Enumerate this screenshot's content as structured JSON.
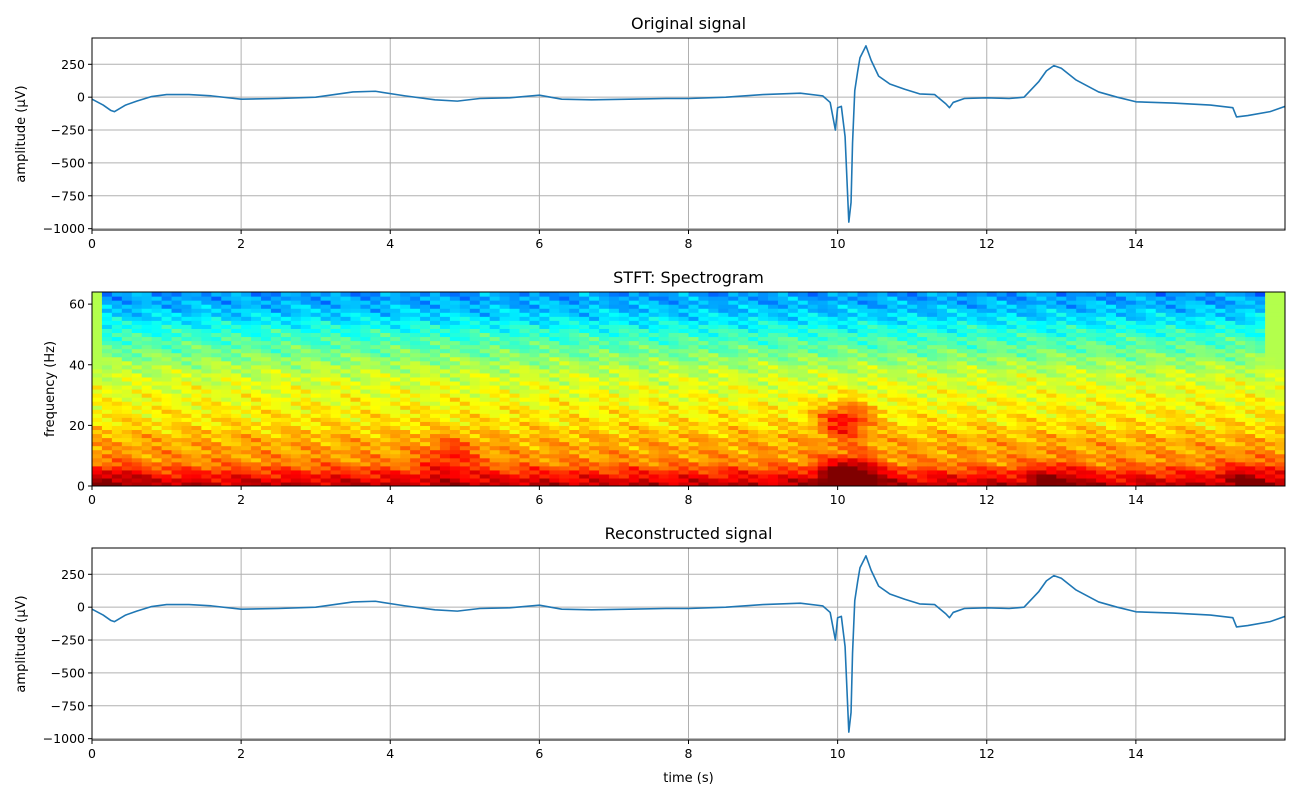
{
  "chart_data": [
    {
      "type": "line",
      "title": "Original signal",
      "xlabel": "",
      "ylabel": "amplitude (µV)",
      "xlim": [
        0,
        16
      ],
      "ylim": [
        -1010,
        450
      ],
      "xticks": [
        0,
        2,
        4,
        6,
        8,
        10,
        12,
        14
      ],
      "yticks": [
        -1000,
        -750,
        -500,
        -250,
        0,
        250
      ],
      "grid": true,
      "series": [
        {
          "color": "#1f77b4",
          "x": [
            0,
            0.15,
            0.25,
            0.3,
            0.45,
            0.6,
            0.8,
            1.0,
            1.3,
            1.6,
            2.0,
            2.5,
            3.0,
            3.5,
            3.8,
            4.2,
            4.6,
            4.9,
            5.2,
            5.6,
            6.0,
            6.3,
            6.7,
            7.2,
            7.7,
            8.0,
            8.5,
            9.0,
            9.5,
            9.8,
            9.9,
            9.97,
            10.0,
            10.05,
            10.1,
            10.15,
            10.18,
            10.2,
            10.23,
            10.27,
            10.3,
            10.38,
            10.45,
            10.55,
            10.7,
            10.9,
            11.1,
            11.3,
            11.45,
            11.5,
            11.55,
            11.7,
            12.0,
            12.3,
            12.5,
            12.7,
            12.8,
            12.9,
            13.0,
            13.2,
            13.5,
            13.75,
            14.0,
            14.5,
            15.0,
            15.3,
            15.35,
            15.5,
            15.8,
            16.0
          ],
          "y": [
            -15,
            -60,
            -100,
            -110,
            -60,
            -30,
            5,
            20,
            20,
            10,
            -15,
            -10,
            0,
            40,
            45,
            10,
            -20,
            -30,
            -10,
            -5,
            15,
            -15,
            -20,
            -15,
            -10,
            -10,
            0,
            20,
            30,
            10,
            -40,
            -250,
            -80,
            -70,
            -300,
            -950,
            -800,
            -350,
            50,
            200,
            300,
            390,
            280,
            160,
            100,
            60,
            25,
            20,
            -50,
            -80,
            -40,
            -10,
            -5,
            -10,
            0,
            120,
            200,
            240,
            220,
            130,
            40,
            0,
            -35,
            -45,
            -60,
            -80,
            -150,
            -140,
            -110,
            -70
          ]
        }
      ]
    },
    {
      "type": "heatmap",
      "title": "STFT: Spectrogram",
      "xlabel": "",
      "ylabel": "frequency (Hz)",
      "xlim": [
        0,
        16
      ],
      "ylim": [
        0,
        64
      ],
      "xticks": [
        0,
        2,
        4,
        6,
        8,
        10,
        12,
        14
      ],
      "yticks": [
        0,
        20,
        40,
        60
      ],
      "colormap": "jet",
      "rows_low_to_high_freq": [
        0,
        4,
        8,
        12,
        16,
        20,
        24,
        28,
        32,
        36,
        40,
        44,
        48,
        52,
        56,
        60,
        64
      ],
      "band_profile": [
        0.95,
        0.85,
        0.74,
        0.72,
        0.7,
        0.66,
        0.64,
        0.62,
        0.6,
        0.58,
        0.54,
        0.49,
        0.45,
        0.4,
        0.34,
        0.3,
        0.27
      ],
      "hotspots": [
        {
          "t": 10.15,
          "f": 3,
          "power": 0.35
        },
        {
          "t": 10.1,
          "f": 22,
          "power": 0.22
        },
        {
          "t": 4.8,
          "f": 10,
          "power": 0.12
        },
        {
          "t": 12.9,
          "f": 2,
          "power": 0.12
        },
        {
          "t": 15.5,
          "f": 3,
          "power": 0.1
        },
        {
          "t": 0.3,
          "f": 2,
          "power": 0.08
        }
      ]
    },
    {
      "type": "line",
      "title": "Reconstructed signal",
      "xlabel": "time (s)",
      "ylabel": "amplitude (µV)",
      "xlim": [
        0,
        16
      ],
      "ylim": [
        -1010,
        450
      ],
      "xticks": [
        0,
        2,
        4,
        6,
        8,
        10,
        12,
        14
      ],
      "yticks": [
        -1000,
        -750,
        -500,
        -250,
        0,
        250
      ],
      "grid": true,
      "series": [
        {
          "color": "#1f77b4",
          "x": [
            0,
            0.15,
            0.25,
            0.3,
            0.45,
            0.6,
            0.8,
            1.0,
            1.3,
            1.6,
            2.0,
            2.5,
            3.0,
            3.5,
            3.8,
            4.2,
            4.6,
            4.9,
            5.2,
            5.6,
            6.0,
            6.3,
            6.7,
            7.2,
            7.7,
            8.0,
            8.5,
            9.0,
            9.5,
            9.8,
            9.9,
            9.97,
            10.0,
            10.05,
            10.1,
            10.15,
            10.18,
            10.2,
            10.23,
            10.27,
            10.3,
            10.38,
            10.45,
            10.55,
            10.7,
            10.9,
            11.1,
            11.3,
            11.45,
            11.5,
            11.55,
            11.7,
            12.0,
            12.3,
            12.5,
            12.7,
            12.8,
            12.9,
            13.0,
            13.2,
            13.5,
            13.75,
            14.0,
            14.5,
            15.0,
            15.3,
            15.35,
            15.5,
            15.8,
            16.0
          ],
          "y": [
            -15,
            -60,
            -100,
            -110,
            -60,
            -30,
            5,
            20,
            20,
            10,
            -15,
            -10,
            0,
            40,
            45,
            10,
            -20,
            -30,
            -10,
            -5,
            15,
            -15,
            -20,
            -15,
            -10,
            -10,
            0,
            20,
            30,
            10,
            -40,
            -250,
            -80,
            -70,
            -300,
            -950,
            -800,
            -350,
            50,
            200,
            300,
            390,
            280,
            160,
            100,
            60,
            25,
            20,
            -50,
            -80,
            -40,
            -10,
            -5,
            -10,
            0,
            120,
            200,
            240,
            220,
            130,
            40,
            0,
            -35,
            -45,
            -60,
            -80,
            -150,
            -140,
            -110,
            -70
          ]
        }
      ]
    }
  ]
}
